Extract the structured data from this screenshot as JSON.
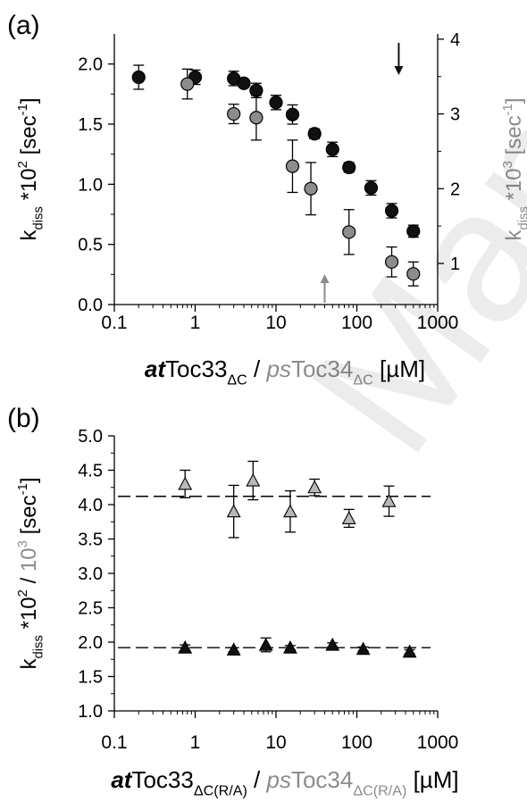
{
  "watermark": "Manuscript",
  "chart_data": [
    {
      "panel_label": "(a)",
      "type": "scatter",
      "x_scale": "log",
      "xlim": [
        0.1,
        1000
      ],
      "xticks": [
        "0.1",
        "1",
        "10",
        "100",
        "1000"
      ],
      "xlabel_parts": [
        {
          "text": "at",
          "style": "bold-italic",
          "color": "#000000"
        },
        {
          "text": "Toc33",
          "style": "normal",
          "color": "#000000"
        },
        {
          "text": "ΔC",
          "style": "sub",
          "color": "#000000"
        },
        {
          "text": " / ",
          "style": "normal",
          "color": "#000000"
        },
        {
          "text": "ps",
          "style": "italic",
          "color": "#8c8c8c"
        },
        {
          "text": "Toc34",
          "style": "normal",
          "color": "#8c8c8c"
        },
        {
          "text": "ΔC",
          "style": "sub",
          "color": "#8c8c8c"
        },
        {
          "text": " [µM]",
          "style": "normal",
          "color": "#000000"
        }
      ],
      "ylim_left": [
        0,
        2.25
      ],
      "yticks_left": [
        "0.0",
        "0.5",
        "1.0",
        "1.5",
        "2.0"
      ],
      "ylabel_left_parts": [
        {
          "text": "k",
          "style": "normal"
        },
        {
          "text": "diss",
          "style": "sub"
        },
        {
          "text": " *10",
          "style": "normal"
        },
        {
          "text": "2",
          "style": "sup"
        },
        {
          "text": " [sec",
          "style": "normal"
        },
        {
          "text": "-1",
          "style": "sup"
        },
        {
          "text": "]",
          "style": "normal"
        }
      ],
      "ylim_right": [
        0.45,
        4.07
      ],
      "yticks_right": [
        "1",
        "2",
        "3",
        "4"
      ],
      "ylabel_right_parts": [
        {
          "text": "k",
          "style": "normal"
        },
        {
          "text": "diss",
          "style": "sub"
        },
        {
          "text": " *10",
          "style": "normal"
        },
        {
          "text": "3",
          "style": "sup"
        },
        {
          "text": " [sec",
          "style": "normal"
        },
        {
          "text": "-1",
          "style": "sup"
        },
        {
          "text": "]",
          "style": "normal"
        }
      ],
      "ylabel_right_color": "#8c8c8c",
      "series": [
        {
          "marker": "circle",
          "fill": "#111111",
          "axis": "left",
          "points": [
            {
              "x": 0.2,
              "y": 1.89,
              "err": 0.1
            },
            {
              "x": 1.0,
              "y": 1.89,
              "err": 0.06
            },
            {
              "x": 3.0,
              "y": 1.88,
              "err": 0.06
            },
            {
              "x": 4.0,
              "y": 1.84,
              "err": 0.03
            },
            {
              "x": 5.7,
              "y": 1.78,
              "err": 0.06
            },
            {
              "x": 10.0,
              "y": 1.68,
              "err": 0.06
            },
            {
              "x": 16.0,
              "y": 1.58,
              "err": 0.08
            },
            {
              "x": 30.0,
              "y": 1.42,
              "err": 0.04
            },
            {
              "x": 50.0,
              "y": 1.29,
              "err": 0.06
            },
            {
              "x": 80.0,
              "y": 1.14,
              "err": 0.04
            },
            {
              "x": 150.0,
              "y": 0.97,
              "err": 0.06
            },
            {
              "x": 270.0,
              "y": 0.78,
              "err": 0.06
            },
            {
              "x": 500.0,
              "y": 0.61,
              "err": 0.05
            }
          ]
        },
        {
          "marker": "circle",
          "fill": "#8c8c8c",
          "axis": "right",
          "points": [
            {
              "x": 0.8,
              "y": 3.4,
              "err": 0.2
            },
            {
              "x": 3.0,
              "y": 3.0,
              "err": 0.13
            },
            {
              "x": 5.7,
              "y": 2.95,
              "err": 0.3
            },
            {
              "x": 16.0,
              "y": 2.3,
              "err": 0.35
            },
            {
              "x": 27.0,
              "y": 2.0,
              "err": 0.35
            },
            {
              "x": 80.0,
              "y": 1.42,
              "err": 0.3
            },
            {
              "x": 270.0,
              "y": 1.02,
              "err": 0.2
            },
            {
              "x": 500.0,
              "y": 0.86,
              "err": 0.16
            }
          ]
        }
      ],
      "arrows": [
        {
          "x": 330,
          "color": "#111111",
          "direction": "down",
          "position": "top"
        },
        {
          "x": 40,
          "color": "#8c8c8c",
          "direction": "up",
          "position": "bottom"
        }
      ]
    },
    {
      "panel_label": "(b)",
      "type": "scatter",
      "x_scale": "log",
      "xlim": [
        0.1,
        1000
      ],
      "xticks": [
        "0.1",
        "1",
        "10",
        "100",
        "1000"
      ],
      "xlabel_parts": [
        {
          "text": "at",
          "style": "bold-italic",
          "color": "#000000"
        },
        {
          "text": "Toc33",
          "style": "normal",
          "color": "#000000"
        },
        {
          "text": "ΔC(R/A)",
          "style": "sub",
          "color": "#000000"
        },
        {
          "text": " / ",
          "style": "normal",
          "color": "#000000"
        },
        {
          "text": "ps",
          "style": "italic",
          "color": "#8c8c8c"
        },
        {
          "text": "Toc34",
          "style": "normal",
          "color": "#8c8c8c"
        },
        {
          "text": "ΔC(R/A)",
          "style": "sub",
          "color": "#8c8c8c"
        },
        {
          "text": " [µM]",
          "style": "normal",
          "color": "#000000"
        }
      ],
      "ylim_left": [
        1.0,
        5.0
      ],
      "yticks_left": [
        "1.0",
        "1.5",
        "2.0",
        "2.5",
        "3.0",
        "3.5",
        "4.0",
        "4.5",
        "5.0"
      ],
      "ylabel_left_parts": [
        {
          "text": "k",
          "style": "normal",
          "color": "#000000"
        },
        {
          "text": "diss",
          "style": "sub",
          "color": "#000000"
        },
        {
          "text": " *10",
          "style": "normal",
          "color": "#000000"
        },
        {
          "text": "2",
          "style": "sup",
          "color": "#000000"
        },
        {
          "text": " / ",
          "style": "normal",
          "color": "#000000"
        },
        {
          "text": "10",
          "style": "normal",
          "color": "#8c8c8c"
        },
        {
          "text": "3",
          "style": "sup",
          "color": "#8c8c8c"
        },
        {
          "text": " [sec",
          "style": "normal",
          "color": "#000000"
        },
        {
          "text": "-1",
          "style": "sup",
          "color": "#000000"
        },
        {
          "text": "]",
          "style": "normal",
          "color": "#000000"
        }
      ],
      "reference_lines": [
        4.12,
        1.92
      ],
      "series": [
        {
          "marker": "triangle",
          "fill": "#b8b8b8",
          "points": [
            {
              "x": 0.75,
              "y": 4.3,
              "err": 0.2
            },
            {
              "x": 3.0,
              "y": 3.9,
              "err": 0.38
            },
            {
              "x": 5.2,
              "y": 4.35,
              "err": 0.28
            },
            {
              "x": 15.0,
              "y": 3.9,
              "err": 0.3
            },
            {
              "x": 30.0,
              "y": 4.25,
              "err": 0.12
            },
            {
              "x": 80.0,
              "y": 3.8,
              "err": 0.13
            },
            {
              "x": 250.0,
              "y": 4.05,
              "err": 0.22
            }
          ]
        },
        {
          "marker": "triangle",
          "fill": "#111111",
          "points": [
            {
              "x": 0.75,
              "y": 1.92,
              "err": 0.04
            },
            {
              "x": 3.0,
              "y": 1.89,
              "err": 0.03
            },
            {
              "x": 7.5,
              "y": 1.96,
              "err": 0.1
            },
            {
              "x": 15.0,
              "y": 1.92,
              "err": 0.03
            },
            {
              "x": 50.0,
              "y": 1.96,
              "err": 0.03
            },
            {
              "x": 120.0,
              "y": 1.9,
              "err": 0.03
            },
            {
              "x": 450.0,
              "y": 1.86,
              "err": 0.03
            }
          ]
        }
      ]
    }
  ]
}
